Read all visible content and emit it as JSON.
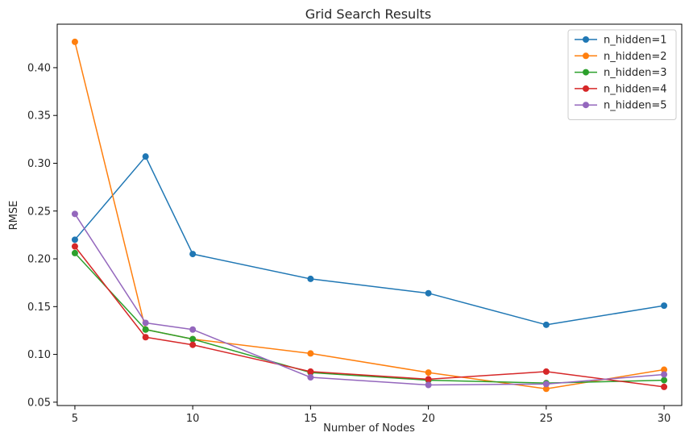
{
  "chart_data": {
    "type": "line",
    "title": "Grid Search Results",
    "xlabel": "Number of Nodes",
    "ylabel": "RMSE",
    "x": [
      5,
      8,
      10,
      15,
      20,
      25,
      30
    ],
    "xticks": [
      5,
      10,
      15,
      20,
      25,
      30
    ],
    "yticks": [
      0.05,
      0.1,
      0.15,
      0.2,
      0.25,
      0.3,
      0.35,
      0.4
    ],
    "xlim": [
      4.25,
      30.75
    ],
    "ylim": [
      0.0465,
      0.4455
    ],
    "grid": false,
    "legend_position": "top-right",
    "series": [
      {
        "name": "n_hidden=1",
        "color": "#1f77b4",
        "values": [
          0.22,
          0.307,
          0.205,
          0.179,
          0.164,
          0.131,
          0.151
        ]
      },
      {
        "name": "n_hidden=2",
        "color": "#ff7f0e",
        "values": [
          0.427,
          0.126,
          0.116,
          0.101,
          0.081,
          0.064,
          0.084
        ]
      },
      {
        "name": "n_hidden=3",
        "color": "#2ca02c",
        "values": [
          0.206,
          0.126,
          0.116,
          0.081,
          0.073,
          0.07,
          0.073
        ]
      },
      {
        "name": "n_hidden=4",
        "color": "#d62728",
        "values": [
          0.213,
          0.118,
          0.11,
          0.082,
          0.074,
          0.082,
          0.066
        ]
      },
      {
        "name": "n_hidden=5",
        "color": "#9467bd",
        "values": [
          0.247,
          0.133,
          0.126,
          0.076,
          0.068,
          0.069,
          0.079
        ]
      }
    ]
  }
}
